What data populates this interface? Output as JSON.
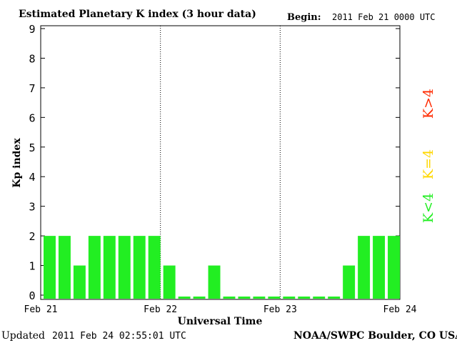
{
  "header": {
    "title": "Estimated Planetary K index (3 hour data)",
    "begin_label": "Begin:",
    "begin_value": "2011 Feb 21 0000 UTC"
  },
  "footer": {
    "updated_label": "Updated",
    "updated_value": "2011 Feb 24 02:55:01 UTC",
    "source": "NOAA/SWPC Boulder, CO USA"
  },
  "legend": {
    "items": [
      {
        "label": "K>4",
        "color": "#ff2a00"
      },
      {
        "label": "K=4",
        "color": "#ffd700"
      },
      {
        "label": "K<4",
        "color": "#22ee22"
      }
    ]
  },
  "chart_data": {
    "type": "bar",
    "xlabel": "Universal Time",
    "ylabel": "Kp index",
    "ylim": [
      0,
      9
    ],
    "yticks": [
      0,
      1,
      2,
      3,
      4,
      5,
      6,
      7,
      8,
      9
    ],
    "xtick_labels": [
      "Feb 21",
      "Feb 22",
      "Feb 23",
      "Feb 24"
    ],
    "bars_per_day": 8,
    "values": [
      2,
      2,
      1,
      2,
      2,
      2,
      2,
      2,
      1,
      0,
      0,
      1,
      0,
      0,
      0,
      0,
      0,
      0,
      0,
      0,
      1,
      2,
      2,
      2
    ],
    "bar_color": "#22ee22",
    "day_separators": "dotted"
  }
}
